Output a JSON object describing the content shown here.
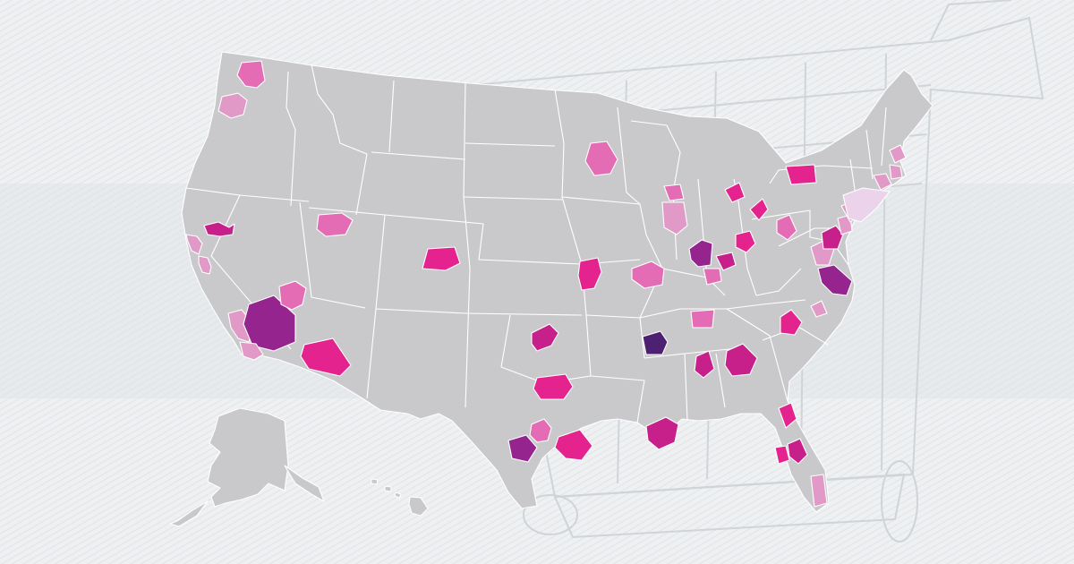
{
  "colors": {
    "background": "#eef0f2",
    "background_band": "#e4e7ea",
    "hatch_line": "#dde1e5",
    "land": "#c9c9cb",
    "state_border": "#ffffff",
    "cart_line": "#d3d7dc",
    "metro_light": "#ecd3ec",
    "metro_pale": "#e19ac7",
    "metro_pink": "#e46cb4",
    "metro_hot": "#e4238e",
    "metro_magenta": "#c7208b",
    "metro_purple": "#95248f",
    "metro_dark": "#4e2072"
  },
  "map": {
    "background_graphic": "shopping-cart-watermark",
    "regions": [
      "contiguous-united-states",
      "alaska",
      "hawaii"
    ],
    "legend_shown": false,
    "labels_shown": false
  },
  "metro_areas": [
    {
      "id": "seattle",
      "color": "metro_pink"
    },
    {
      "id": "portland",
      "color": "metro_pale"
    },
    {
      "id": "sacramento",
      "color": "metro_magenta"
    },
    {
      "id": "san-francisco",
      "color": "metro_pale"
    },
    {
      "id": "san-jose",
      "color": "metro_pale"
    },
    {
      "id": "los-angeles",
      "color": "metro_pale"
    },
    {
      "id": "riverside",
      "color": "metro_purple"
    },
    {
      "id": "san-diego",
      "color": "metro_pale"
    },
    {
      "id": "las-vegas",
      "color": "metro_pink"
    },
    {
      "id": "phoenix",
      "color": "metro_hot"
    },
    {
      "id": "salt-lake-city",
      "color": "metro_pink"
    },
    {
      "id": "denver",
      "color": "metro_hot"
    },
    {
      "id": "oklahoma-city",
      "color": "metro_magenta"
    },
    {
      "id": "dallas",
      "color": "metro_hot"
    },
    {
      "id": "austin",
      "color": "metro_pink"
    },
    {
      "id": "san-antonio",
      "color": "metro_purple"
    },
    {
      "id": "houston",
      "color": "metro_hot"
    },
    {
      "id": "kansas-city",
      "color": "metro_hot"
    },
    {
      "id": "minneapolis",
      "color": "metro_pink"
    },
    {
      "id": "milwaukee",
      "color": "metro_pink"
    },
    {
      "id": "chicago",
      "color": "metro_pale"
    },
    {
      "id": "st-louis",
      "color": "metro_pink"
    },
    {
      "id": "indianapolis",
      "color": "metro_purple"
    },
    {
      "id": "detroit",
      "color": "metro_hot"
    },
    {
      "id": "cleveland",
      "color": "metro_hot"
    },
    {
      "id": "columbus",
      "color": "metro_hot"
    },
    {
      "id": "cincinnati",
      "color": "metro_magenta"
    },
    {
      "id": "louisville",
      "color": "metro_pink"
    },
    {
      "id": "pittsburgh",
      "color": "metro_pink"
    },
    {
      "id": "buffalo",
      "color": "metro_hot"
    },
    {
      "id": "nashville",
      "color": "metro_pink"
    },
    {
      "id": "memphis",
      "color": "metro_dark"
    },
    {
      "id": "birmingham",
      "color": "metro_magenta"
    },
    {
      "id": "atlanta",
      "color": "metro_magenta"
    },
    {
      "id": "charlotte",
      "color": "metro_hot"
    },
    {
      "id": "raleigh",
      "color": "metro_pale"
    },
    {
      "id": "new-orleans",
      "color": "metro_magenta"
    },
    {
      "id": "jacksonville",
      "color": "metro_hot"
    },
    {
      "id": "orlando",
      "color": "metro_magenta"
    },
    {
      "id": "tampa",
      "color": "metro_hot"
    },
    {
      "id": "miami",
      "color": "metro_pale"
    },
    {
      "id": "richmond",
      "color": "metro_pale"
    },
    {
      "id": "virginia-beach",
      "color": "metro_purple"
    },
    {
      "id": "washington",
      "color": "metro_magenta"
    },
    {
      "id": "baltimore",
      "color": "metro_pale"
    },
    {
      "id": "philadelphia",
      "color": "metro_pale"
    },
    {
      "id": "new-york",
      "color": "metro_light"
    },
    {
      "id": "hartford",
      "color": "metro_pale"
    },
    {
      "id": "providence",
      "color": "metro_pale"
    },
    {
      "id": "boston",
      "color": "metro_pale"
    }
  ]
}
